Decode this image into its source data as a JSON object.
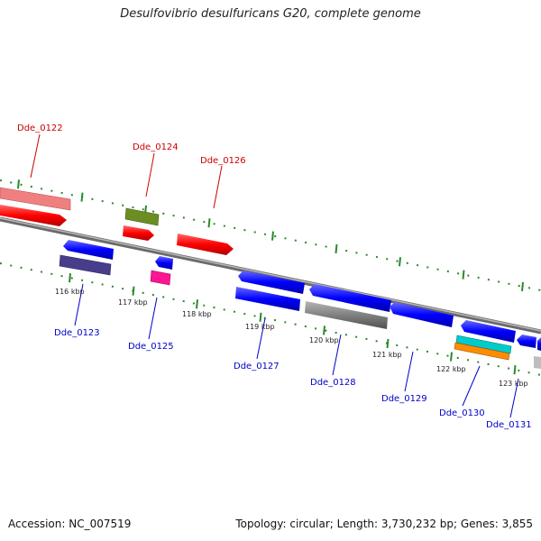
{
  "title": "Desulfovibrio desulfuricans G20, complete genome",
  "accession": "Accession: NC_007519",
  "topology": "Topology: circular; Length: 3,730,232 bp; Genes: 3,855",
  "colors": {
    "red": "#ff0000",
    "pink": "#f08080",
    "olive": "#6b8e23",
    "blue": "#0000ff",
    "navy": "#483d8b",
    "magenta": "#ff1493",
    "gray": "#808080",
    "cyan": "#00cccc",
    "orange": "#ff8c00",
    "tick": "#2a8a2a",
    "label_red": "#cc0000",
    "label_blue": "#0000cc"
  },
  "ticks": [
    {
      "label": "116 kbp",
      "pos": 116
    },
    {
      "label": "117 kbp",
      "pos": 117
    },
    {
      "label": "118 kbp",
      "pos": 118
    },
    {
      "label": "119 kbp",
      "pos": 119
    },
    {
      "label": "120 kbp",
      "pos": 120
    },
    {
      "label": "121 kbp",
      "pos": 121
    },
    {
      "label": "122 kbp",
      "pos": 122
    },
    {
      "label": "123 kbp",
      "pos": 123
    }
  ],
  "labels_top": [
    "Dde_0122",
    "Dde_0124",
    "Dde_0126"
  ],
  "labels_bottom": [
    "Dde_0123",
    "Dde_0125",
    "Dde_0127",
    "Dde_0128",
    "Dde_0129",
    "Dde_0130",
    "Dde_0131"
  ]
}
